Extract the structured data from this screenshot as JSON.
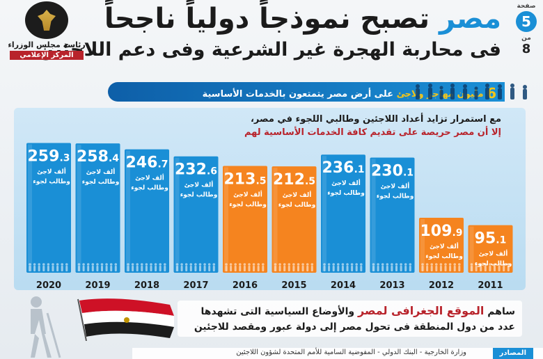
{
  "header": {
    "page_label": "صفحة",
    "page_current": "5",
    "page_separator": "من",
    "page_total": "8",
    "title_accent": "مصر",
    "title_rest": "تصبح نموذجاً دولياً ناجحاً",
    "subtitle": "فى محاربة الهجرة غير الشرعية وفى دعم اللاجئين"
  },
  "logo": {
    "line1": "رئاسة مجلس الوزراء",
    "line2": "المركز الإعلامي"
  },
  "banner": {
    "number": "6",
    "text_em": "مليون مهاجر ولاجئ",
    "text_rest": "على أرض مصر يتمتعون بالخدمات الأساسية"
  },
  "chart_subtitle": {
    "line1": "مع استمرار تزايد أعداد اللاجئين وطالبي اللجوء في مصر،",
    "line2": "إلا أن مصر حريصة على تقديم كافة الخدمات الأساسية لهم"
  },
  "chart_data": {
    "type": "bar",
    "categories": [
      "2020",
      "2019",
      "2018",
      "2017",
      "2016",
      "2015",
      "2014",
      "2013",
      "2012",
      "2011"
    ],
    "values": [
      259.3,
      258.4,
      246.7,
      232.6,
      213.5,
      212.5,
      236.1,
      230.1,
      109.9,
      95.1
    ],
    "value_labels": [
      {
        "int": "259",
        "dec": ".3"
      },
      {
        "int": "258",
        "dec": ".4"
      },
      {
        "int": "246",
        "dec": ".7"
      },
      {
        "int": "232",
        "dec": ".6"
      },
      {
        "int": "213",
        "dec": ".5"
      },
      {
        "int": "212",
        "dec": ".5"
      },
      {
        "int": "236",
        "dec": ".1"
      },
      {
        "int": "230",
        "dec": ".1"
      },
      {
        "int": "109",
        "dec": ".9"
      },
      {
        "int": "95",
        "dec": ".1"
      }
    ],
    "unit_line1": "ألف لاجئ",
    "unit_line2": "وطالب لجوء",
    "bar_colors": [
      "#1a8fd6",
      "#1a8fd6",
      "#1a8fd6",
      "#1a8fd6",
      "#f5841f",
      "#f5841f",
      "#1a8fd6",
      "#1a8fd6",
      "#f5841f",
      "#f5841f"
    ],
    "colors": {
      "blue": "#1a8fd6",
      "orange": "#f5841f"
    },
    "ylim": [
      0,
      260
    ],
    "order": "right-to-left chronological",
    "grid": false
  },
  "note": {
    "part1": "ساهم",
    "highlight": "الموقع الجغرافى لمصر",
    "part2": "والأوضاع السياسية التى تشهدها",
    "line2": "عدد من دول المنطقة فى تحول مصر إلى دولة عبور ومقصد للاجئين"
  },
  "source": {
    "label": "المصادر",
    "text": "وزارة الخارجية - البنك الدولي - المفوضية السامية للأمم المتحدة لشؤون اللاجئين"
  }
}
